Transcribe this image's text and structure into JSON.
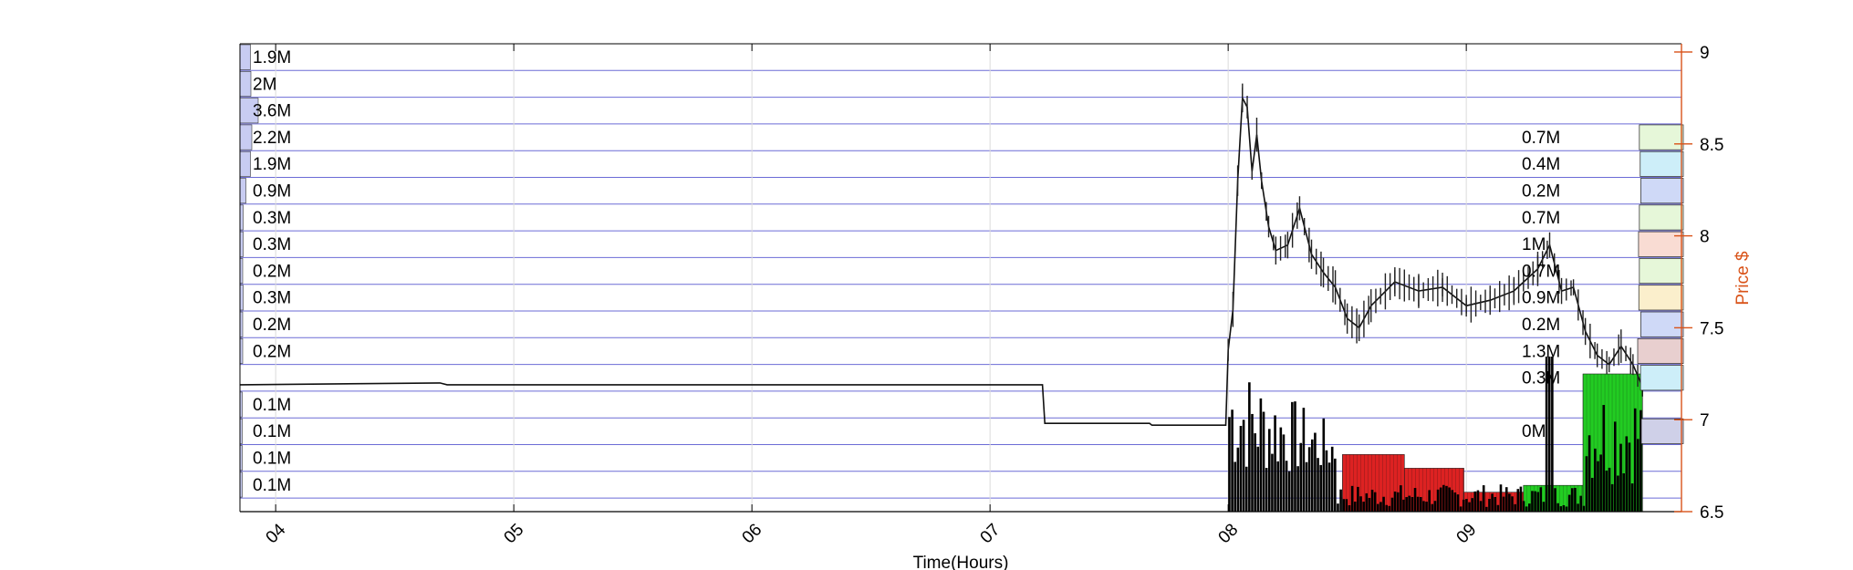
{
  "chart_data": {
    "type": "bar",
    "xlabel": "Time(Hours)",
    "ylabel_right": "Price $",
    "x_ticks": [
      "04",
      "05",
      "06",
      "07",
      "08",
      "09"
    ],
    "y_right_ticks": [
      "6.5",
      "7",
      "7.5",
      "8",
      "8.5",
      "9"
    ],
    "ylim_right": [
      6.5,
      9.0
    ],
    "grid": true,
    "colors": {
      "axis_left": "#000000",
      "axis_right": "#d95319",
      "grid": "#dcdcdc",
      "band_line": "#6b6bd6",
      "volume": "#000000",
      "volume_up": "#22cc22",
      "volume_down": "#dd2222"
    },
    "volume_profile_left": [
      {
        "label": "1.9M",
        "value": 1.9
      },
      {
        "label": "2M",
        "value": 2.0
      },
      {
        "label": "3.6M",
        "value": 3.6
      },
      {
        "label": "2.2M",
        "value": 2.2
      },
      {
        "label": "1.9M",
        "value": 1.9
      },
      {
        "label": "0.9M",
        "value": 0.9
      },
      {
        "label": "0.3M",
        "value": 0.3
      },
      {
        "label": "0.3M",
        "value": 0.3
      },
      {
        "label": "0.2M",
        "value": 0.2
      },
      {
        "label": "0.3M",
        "value": 0.3
      },
      {
        "label": "0.2M",
        "value": 0.2
      },
      {
        "label": "0.2M",
        "value": 0.2
      },
      {
        "label": "",
        "value": 0
      },
      {
        "label": "0.1M",
        "value": 0.1
      },
      {
        "label": "0.1M",
        "value": 0.1
      },
      {
        "label": "0.1M",
        "value": 0.1
      },
      {
        "label": "0.1M",
        "value": 0.1
      }
    ],
    "volume_profile_right": [
      {
        "label": "0.7M",
        "value": 0.7,
        "color": "#e6f7d9"
      },
      {
        "label": "0.4M",
        "value": 0.4,
        "color": "#cdeef9"
      },
      {
        "label": "0.2M",
        "value": 0.2,
        "color": "#cfd9f7"
      },
      {
        "label": "0.7M",
        "value": 0.7,
        "color": "#e6f7d9"
      },
      {
        "label": "1M",
        "value": 1.0,
        "color": "#f9dcd3"
      },
      {
        "label": "0.7M",
        "value": 0.7,
        "color": "#e6f7d9"
      },
      {
        "label": "0.9M",
        "value": 0.9,
        "color": "#fbefcc"
      },
      {
        "label": "0.2M",
        "value": 0.2,
        "color": "#cfd9f7"
      },
      {
        "label": "1.3M",
        "value": 1.3,
        "color": "#e8cfcf"
      },
      {
        "label": "0.3M",
        "value": 0.3,
        "color": "#cdeef9"
      },
      {
        "label": "",
        "value": 0,
        "color": ""
      },
      {
        "label": "0M",
        "value": 0.0,
        "color": "#cfd0e8"
      }
    ],
    "price_series": [
      {
        "t": 3.85,
        "price": 7.19
      },
      {
        "t": 4.69,
        "price": 7.2
      },
      {
        "t": 4.72,
        "price": 7.19
      },
      {
        "t": 7.22,
        "price": 7.19
      },
      {
        "t": 7.23,
        "price": 6.98
      },
      {
        "t": 7.67,
        "price": 6.98
      },
      {
        "t": 7.68,
        "price": 6.97
      },
      {
        "t": 7.99,
        "price": 6.97
      },
      {
        "t": 8.0,
        "price": 7.38
      },
      {
        "t": 8.02,
        "price": 7.6
      },
      {
        "t": 8.04,
        "price": 8.3
      },
      {
        "t": 8.06,
        "price": 8.75
      },
      {
        "t": 8.08,
        "price": 8.7
      },
      {
        "t": 8.1,
        "price": 8.35
      },
      {
        "t": 8.12,
        "price": 8.55
      },
      {
        "t": 8.14,
        "price": 8.3
      },
      {
        "t": 8.17,
        "price": 8.05
      },
      {
        "t": 8.2,
        "price": 7.92
      },
      {
        "t": 8.25,
        "price": 7.95
      },
      {
        "t": 8.3,
        "price": 8.15
      },
      {
        "t": 8.35,
        "price": 7.9
      },
      {
        "t": 8.4,
        "price": 7.8
      },
      {
        "t": 8.45,
        "price": 7.72
      },
      {
        "t": 8.5,
        "price": 7.55
      },
      {
        "t": 8.55,
        "price": 7.5
      },
      {
        "t": 8.6,
        "price": 7.62
      },
      {
        "t": 8.7,
        "price": 7.75
      },
      {
        "t": 8.8,
        "price": 7.7
      },
      {
        "t": 8.9,
        "price": 7.72
      },
      {
        "t": 9.0,
        "price": 7.62
      },
      {
        "t": 9.1,
        "price": 7.65
      },
      {
        "t": 9.2,
        "price": 7.7
      },
      {
        "t": 9.3,
        "price": 7.82
      },
      {
        "t": 9.35,
        "price": 7.95
      },
      {
        "t": 9.4,
        "price": 7.7
      },
      {
        "t": 9.45,
        "price": 7.72
      },
      {
        "t": 9.5,
        "price": 7.48
      },
      {
        "t": 9.55,
        "price": 7.35
      },
      {
        "t": 9.6,
        "price": 7.3
      },
      {
        "t": 9.65,
        "price": 7.4
      },
      {
        "t": 9.7,
        "price": 7.3
      },
      {
        "t": 9.74,
        "price": 7.18
      }
    ],
    "volume_blocks": [
      {
        "start": 8.48,
        "end": 8.74,
        "level": 0.28,
        "trend": "down"
      },
      {
        "start": 8.74,
        "end": 8.99,
        "level": 0.2,
        "trend": "down"
      },
      {
        "start": 8.99,
        "end": 9.24,
        "level": 0.06,
        "trend": "down"
      },
      {
        "start": 9.24,
        "end": 9.49,
        "level": 0.1,
        "trend": "up"
      },
      {
        "start": 9.49,
        "end": 9.74,
        "level": 0.75,
        "trend": "up"
      }
    ]
  }
}
